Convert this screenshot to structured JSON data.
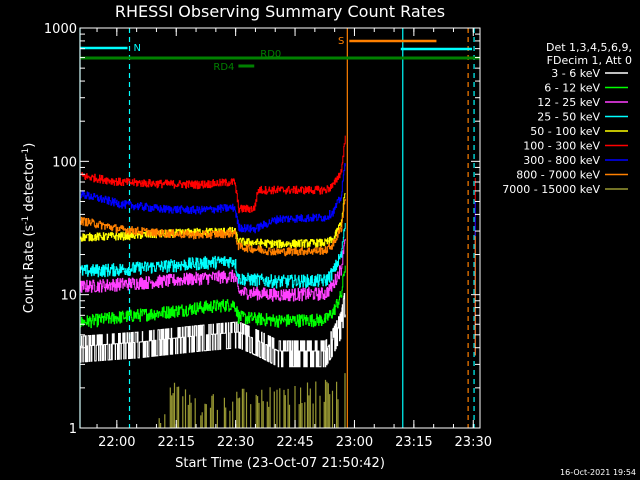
{
  "chart_data": {
    "type": "line",
    "title": "RHESSI Observing Summary Count Rates",
    "xlabel": "Start Time (23-Oct-07 21:50:42)",
    "ylabel": "Count Rate (s⁻¹ detector⁻¹)",
    "yscale": "log",
    "ylim": [
      1,
      1000
    ],
    "xlim_minutes": [
      0,
      101
    ],
    "x_start": "21:50:42",
    "x_ticks": [
      "22:00",
      "22:15",
      "22:30",
      "22:45",
      "23:00",
      "23:15",
      "23:30"
    ],
    "y_ticks": [
      "1",
      "10",
      "100",
      "1000"
    ],
    "legend_header": [
      "Det 1,3,4,5,6,9,",
      "FDecim 1, Att 0"
    ],
    "grid": false,
    "series": [
      {
        "name": "3 - 6 keV",
        "color": "#ffffff",
        "x": [
          0,
          15,
          30,
          40,
          50,
          62,
          64,
          66,
          67
        ],
        "values": [
          3.9,
          4.2,
          4.7,
          5.0,
          3.6,
          3.6,
          4.5,
          6.0,
          9.0
        ]
      },
      {
        "name": "6 - 12 keV",
        "color": "#00ff00",
        "x": [
          0,
          10,
          20,
          30,
          39,
          40,
          50,
          62,
          64,
          66,
          67
        ],
        "values": [
          6.2,
          6.8,
          7.3,
          8.0,
          8.5,
          6.8,
          6.4,
          6.5,
          7.5,
          10,
          17
        ]
      },
      {
        "name": "12 - 25 keV",
        "color": "#ff40ff",
        "x": [
          0,
          10,
          20,
          30,
          39,
          40,
          50,
          62,
          64,
          66,
          67
        ],
        "values": [
          11.5,
          12.0,
          12.6,
          13.3,
          13.8,
          10.5,
          10.0,
          10.2,
          12,
          16,
          28
        ]
      },
      {
        "name": "25 - 50 keV",
        "color": "#00ffff",
        "x": [
          0,
          10,
          20,
          30,
          39,
          40,
          50,
          62,
          64,
          66,
          67
        ],
        "values": [
          15.0,
          15.5,
          16.3,
          17.2,
          18,
          13.2,
          12.6,
          12.8,
          15,
          20,
          35
        ]
      },
      {
        "name": "50 - 100 keV",
        "color": "#ffff00",
        "x": [
          0,
          10,
          20,
          30,
          39,
          40,
          50,
          62,
          64,
          66,
          67
        ],
        "values": [
          27,
          27.5,
          28.5,
          29.5,
          30,
          25,
          24,
          24.5,
          26,
          35,
          60
        ]
      },
      {
        "name": "100 - 300 keV",
        "color": "#ff0000",
        "x": [
          0,
          10,
          20,
          30,
          39,
          40,
          44,
          45,
          50,
          62,
          64,
          66,
          67
        ],
        "values": [
          78,
          70,
          68,
          67,
          70,
          44,
          44,
          61,
          61,
          61,
          66,
          85,
          150
        ]
      },
      {
        "name": "300 - 800 keV",
        "color": "#0000ff",
        "x": [
          0,
          10,
          20,
          30,
          39,
          40,
          44,
          50,
          62,
          64,
          66,
          67
        ],
        "values": [
          57,
          48,
          44,
          43,
          45,
          32,
          31,
          37,
          38,
          42,
          55,
          100
        ]
      },
      {
        "name": "800 - 7000 keV",
        "color": "#ff8000",
        "x": [
          0,
          10,
          20,
          30,
          39,
          40,
          44,
          50,
          62,
          64,
          66,
          67
        ],
        "values": [
          36,
          31,
          29,
          28,
          29,
          23,
          22,
          21,
          21.5,
          24,
          32,
          55
        ]
      },
      {
        "name": "7000 - 15000 keV",
        "color": "#999933",
        "x": [
          20,
          21,
          22,
          24,
          26,
          28,
          66.3,
          66.6,
          67
        ],
        "values": [
          1.05,
          1.4,
          1.8,
          1.9,
          1.7,
          1.5,
          2,
          3,
          2.5
        ]
      }
    ],
    "flags": [
      {
        "label": "N",
        "color": "#00ffff",
        "x": [
          0,
          12
        ],
        "level": "top"
      },
      {
        "label": "RD0",
        "color": "#008000",
        "x": [
          0,
          101
        ],
        "level": "upper"
      },
      {
        "label": "RD4",
        "color": "#008000",
        "x": [
          40,
          44
        ],
        "level": "lower"
      },
      {
        "label": "S",
        "color": "#ff8000",
        "x": [
          68,
          90
        ],
        "level": "upper-right"
      },
      {
        "label": "",
        "color": "#00ffff",
        "x": [
          81,
          99
        ],
        "level": "top-right"
      }
    ],
    "vertical_markers": [
      {
        "x": 0,
        "color": "#00ffff",
        "style": "solid"
      },
      {
        "x": 12.5,
        "color": "#00ffff",
        "style": "dashed"
      },
      {
        "x": 67.5,
        "color": "#ff8000",
        "style": "solid"
      },
      {
        "x": 81.5,
        "color": "#00ffff",
        "style": "solid"
      },
      {
        "x": 98,
        "color": "#ff8000",
        "style": "dashed"
      },
      {
        "x": 99.5,
        "color": "#00ffff",
        "style": "dashed"
      }
    ]
  },
  "timestamp": "16-Oct-2021 19:54"
}
